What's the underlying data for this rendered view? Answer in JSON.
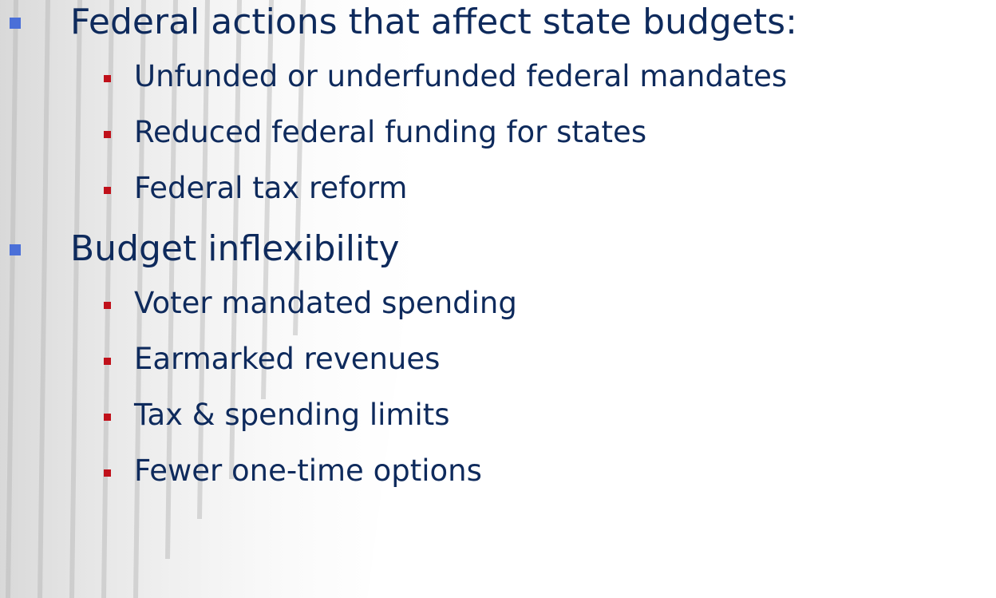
{
  "bullets": [
    {
      "text": "Federal actions that affect state budgets:",
      "items": [
        "Unfunded or underfunded federal mandates",
        "Reduced federal funding for states",
        "Federal tax reform"
      ]
    },
    {
      "text": "Budget inflexibility",
      "items": [
        "Voter mandated spending",
        "Earmarked revenues",
        "Tax & spending limits",
        "Fewer one-time options"
      ]
    }
  ]
}
